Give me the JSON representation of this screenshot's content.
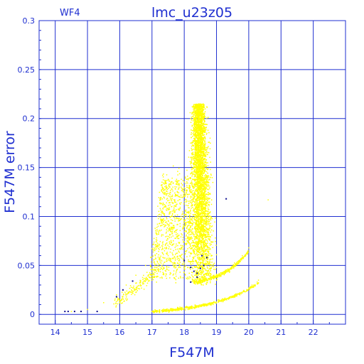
{
  "chart_data": {
    "type": "scatter",
    "title": "lmc_u23z05",
    "subtitle": "WF4",
    "xlabel": "F547M",
    "ylabel": "F547M error",
    "xlim": [
      13.5,
      23.0
    ],
    "ylim": [
      -0.01,
      0.3
    ],
    "grid": true,
    "x_ticks": [
      14,
      15,
      16,
      17,
      18,
      19,
      20,
      21,
      22
    ],
    "x_tick_labels": [
      "14",
      "15",
      "16",
      "17",
      "18",
      "19",
      "20",
      "21",
      "22"
    ],
    "y_ticks": [
      0,
      0.05,
      0.1,
      0.15,
      0.2,
      0.25,
      0.3
    ],
    "y_tick_labels": [
      "0",
      "0.05",
      "0.1",
      "0.15",
      "0.2",
      "0.25",
      "0.3"
    ],
    "colors": {
      "axis": "#1f2fd0",
      "grid": "#1f2fd0",
      "main_points": "#ffff00",
      "flagged_points": "#0a0a90"
    },
    "series": [
      {
        "color": "#ffff00",
        "description_points": [
          [
            18.3,
            0.214
          ],
          [
            18.4,
            0.214
          ],
          [
            18.5,
            0.214
          ],
          [
            18.6,
            0.213
          ],
          [
            18.7,
            0.212
          ],
          [
            18.2,
            0.2
          ],
          [
            18.45,
            0.19
          ],
          [
            18.7,
            0.185
          ],
          [
            18.8,
            0.18
          ],
          [
            18.2,
            0.16
          ],
          [
            18.5,
            0.15
          ],
          [
            18.8,
            0.14
          ],
          [
            17.9,
            0.13
          ],
          [
            18.1,
            0.12
          ],
          [
            18.6,
            0.12
          ],
          [
            17.6,
            0.11
          ],
          [
            18.0,
            0.1
          ],
          [
            18.4,
            0.1
          ],
          [
            18.8,
            0.09
          ],
          [
            17.4,
            0.09
          ],
          [
            17.8,
            0.08
          ],
          [
            18.2,
            0.07
          ],
          [
            18.6,
            0.07
          ],
          [
            17.1,
            0.06
          ],
          [
            17.5,
            0.06
          ],
          [
            16.8,
            0.05
          ],
          [
            17.2,
            0.045
          ],
          [
            16.5,
            0.04
          ],
          [
            16.2,
            0.03
          ],
          [
            15.9,
            0.02
          ],
          [
            15.5,
            0.012
          ],
          [
            15.0,
            0.005
          ],
          [
            14.5,
            0.003
          ],
          [
            18.4,
            0.045
          ],
          [
            18.6,
            0.04
          ],
          [
            19.0,
            0.035
          ],
          [
            19.4,
            0.043
          ],
          [
            19.8,
            0.06
          ],
          [
            20.0,
            0.068
          ],
          [
            17.0,
            0.003
          ],
          [
            17.8,
            0.005
          ],
          [
            18.5,
            0.008
          ],
          [
            19.2,
            0.013
          ],
          [
            19.8,
            0.022
          ],
          [
            20.1,
            0.03
          ],
          [
            20.3,
            0.035
          ],
          [
            20.6,
            0.117
          ],
          [
            19.3,
            0.118
          ]
        ]
      },
      {
        "color": "#0a0a90",
        "points": [
          [
            14.3,
            0.003
          ],
          [
            14.4,
            0.003
          ],
          [
            14.6,
            0.003
          ],
          [
            14.8,
            0.003
          ],
          [
            15.3,
            0.003
          ],
          [
            15.9,
            0.018
          ],
          [
            16.1,
            0.025
          ],
          [
            16.4,
            0.034
          ],
          [
            18.0,
            0.055
          ],
          [
            18.2,
            0.048
          ],
          [
            18.3,
            0.044
          ],
          [
            18.4,
            0.042
          ],
          [
            18.5,
            0.047
          ],
          [
            18.6,
            0.05
          ],
          [
            18.55,
            0.06
          ],
          [
            18.7,
            0.058
          ],
          [
            18.4,
            0.038
          ],
          [
            18.2,
            0.033
          ],
          [
            19.3,
            0.118
          ]
        ]
      }
    ]
  }
}
